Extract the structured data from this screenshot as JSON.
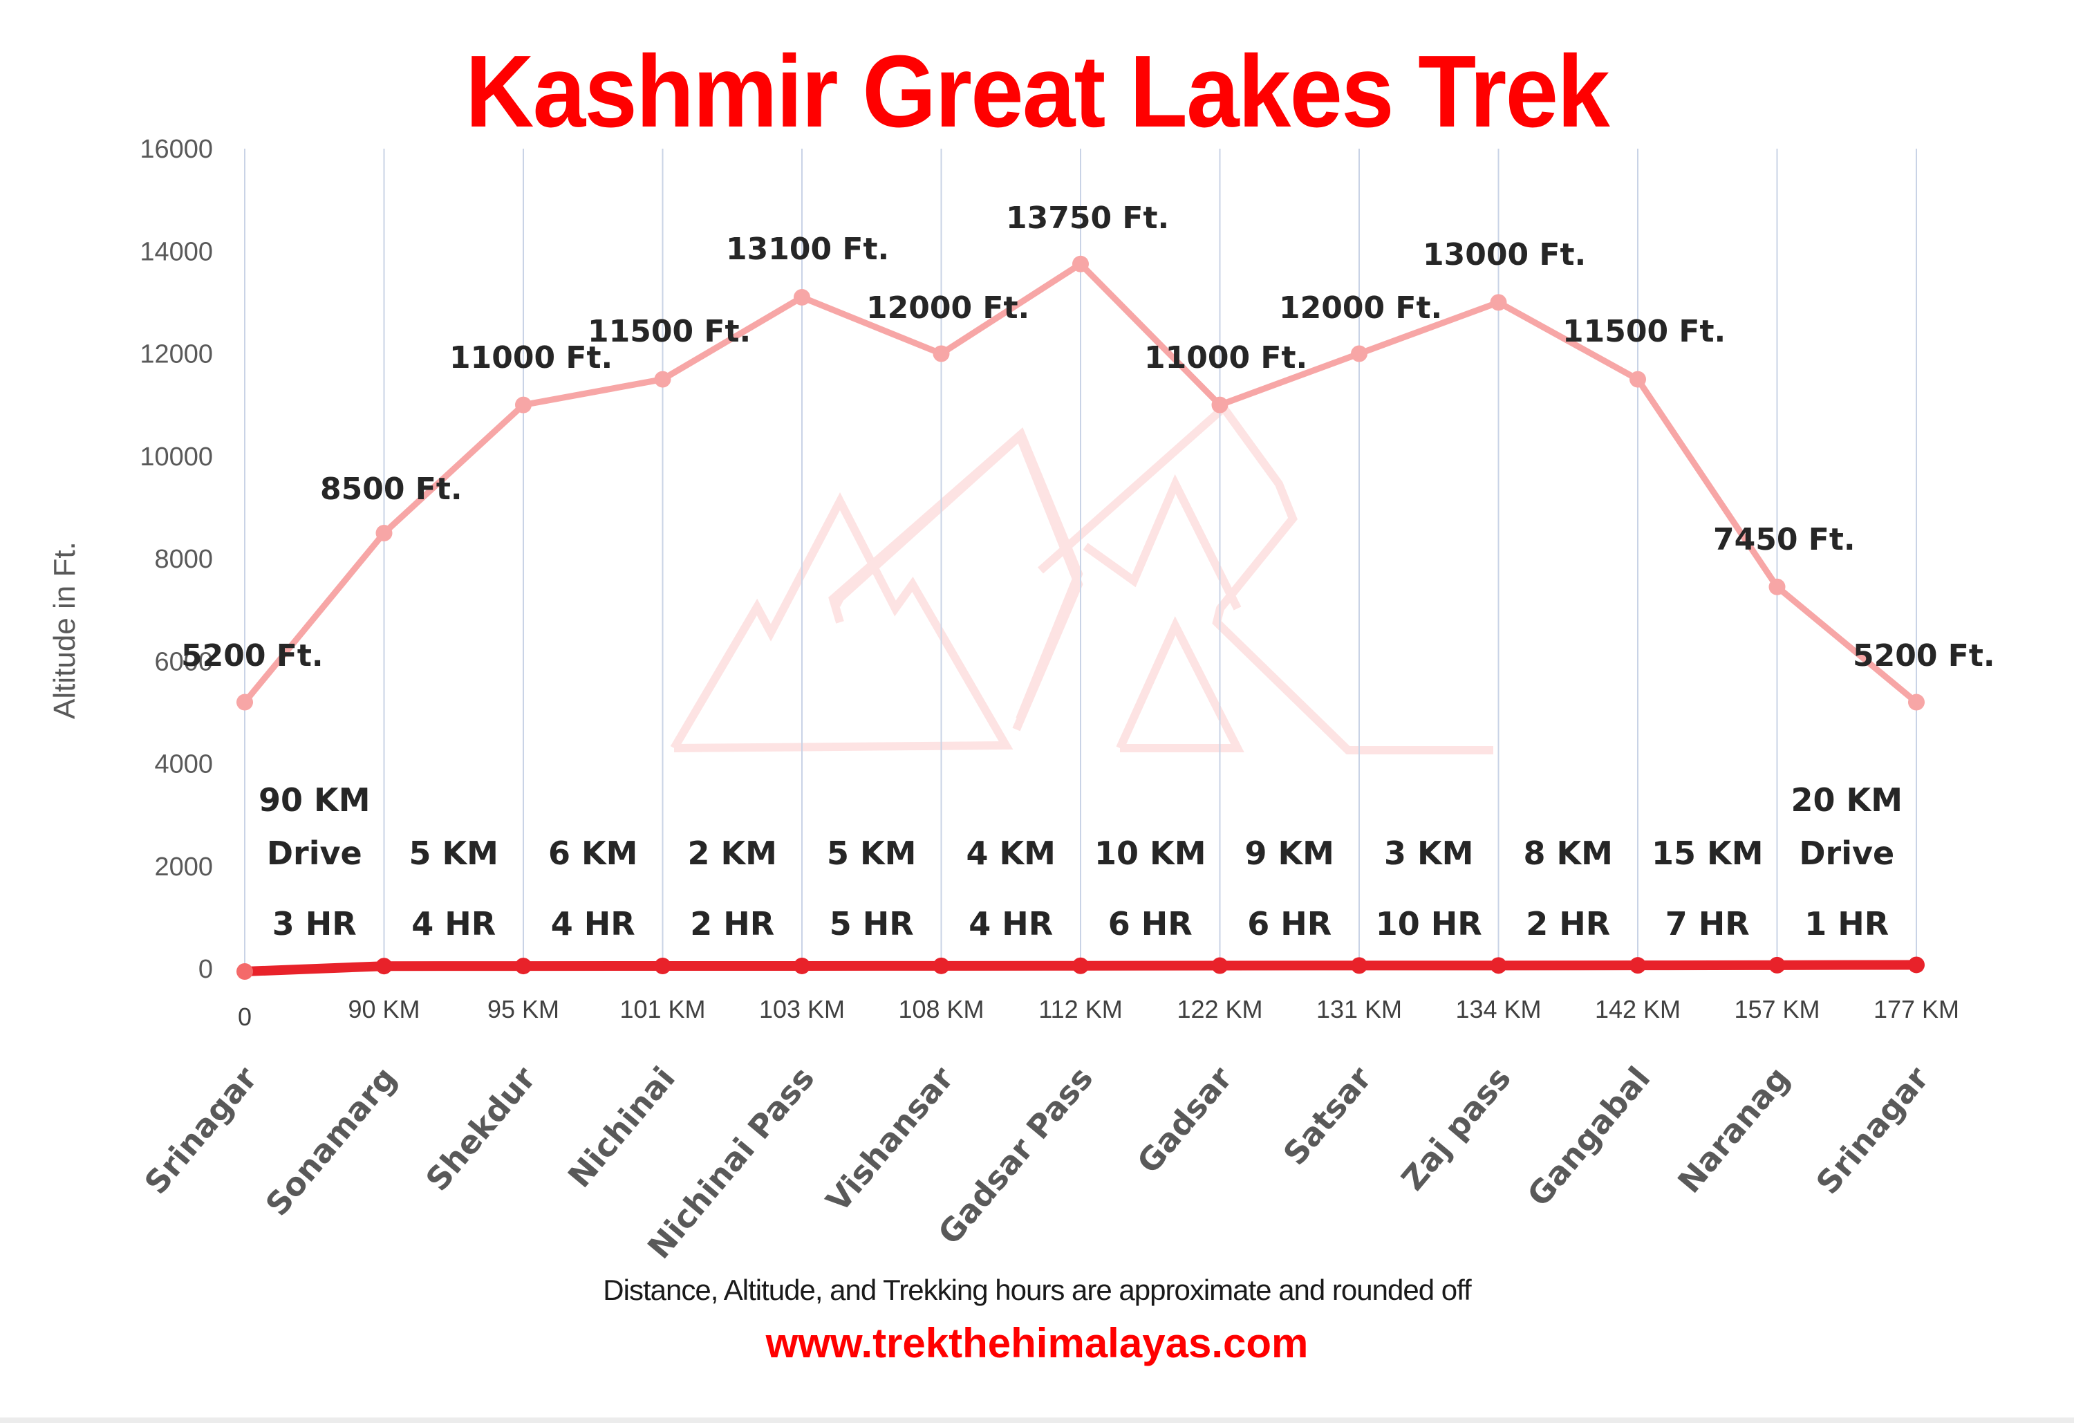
{
  "title": "Kashmir Great Lakes Trek",
  "footer": {
    "note": "Distance, Altitude,  and Trekking hours are approximate and rounded  off",
    "website": "www.trekthehimalayas.com"
  },
  "colors": {
    "title": "#ff0000",
    "altitude_line": "#f7a6a6",
    "distance_line": "#e8222a",
    "gridline": "#c9d3e6",
    "watermark": "#fde3e3"
  },
  "chart_data": {
    "type": "line",
    "title": "Kashmir Great Lakes Trek",
    "xlabel": "",
    "ylabel": "Altitude in Ft.",
    "ylim": [
      0,
      16000
    ],
    "yticks": [
      0,
      2000,
      4000,
      6000,
      8000,
      10000,
      12000,
      14000,
      16000
    ],
    "grid": "vertical",
    "categories": [
      "Srinagar",
      "Sonamarg",
      "Shekdur",
      "Nichinai",
      "Nichinai Pass",
      "Vishansar",
      "Gadsar Pass",
      "Gadsar",
      "Satsar",
      "Zaj pass",
      "Gangabal",
      "Naranag",
      "Srinagar"
    ],
    "cumulative_distance_labels": [
      "0",
      "90 KM",
      "95 KM",
      "101 KM",
      "103 KM",
      "108 KM",
      "112 KM",
      "122 KM",
      "131 KM",
      "134 KM",
      "142 KM",
      "157 KM",
      "177 KM"
    ],
    "series": [
      {
        "name": "Altitude",
        "values": [
          5200,
          8500,
          11000,
          11500,
          13100,
          12000,
          13750,
          11000,
          12000,
          13000,
          11500,
          7450,
          5200
        ],
        "labels": [
          "5200 Ft.",
          "8500 Ft.",
          "11000 Ft.",
          "11500 Ft.",
          "13100 Ft.",
          "12000 Ft.",
          "13750 Ft.",
          "11000 Ft.",
          "12000 Ft.",
          "13000 Ft.",
          "11500 Ft.",
          "7450 Ft.",
          "5200 Ft."
        ]
      },
      {
        "name": "Distance (baseline)",
        "values": [
          0,
          90,
          95,
          101,
          103,
          108,
          112,
          122,
          131,
          134,
          142,
          157,
          177
        ]
      }
    ],
    "segments": [
      {
        "distance": "90  KM",
        "mode": "Drive",
        "time": "3 HR"
      },
      {
        "distance": "5 KM",
        "mode": "",
        "time": "4 HR"
      },
      {
        "distance": "6 KM",
        "mode": "",
        "time": "4 HR"
      },
      {
        "distance": "2 KM",
        "mode": "",
        "time": "2 HR"
      },
      {
        "distance": "5 KM",
        "mode": "",
        "time": "5 HR"
      },
      {
        "distance": "4 KM",
        "mode": "",
        "time": "4 HR"
      },
      {
        "distance": "10 KM",
        "mode": "",
        "time": "6 HR"
      },
      {
        "distance": "9 KM",
        "mode": "",
        "time": "6 HR"
      },
      {
        "distance": "3 KM",
        "mode": "",
        "time": "10 HR"
      },
      {
        "distance": "8 KM",
        "mode": "",
        "time": "2 HR"
      },
      {
        "distance": "15 KM",
        "mode": "",
        "time": "7 HR"
      },
      {
        "distance": "20  KM",
        "mode": "Drive",
        "time": "1 HR"
      }
    ]
  }
}
